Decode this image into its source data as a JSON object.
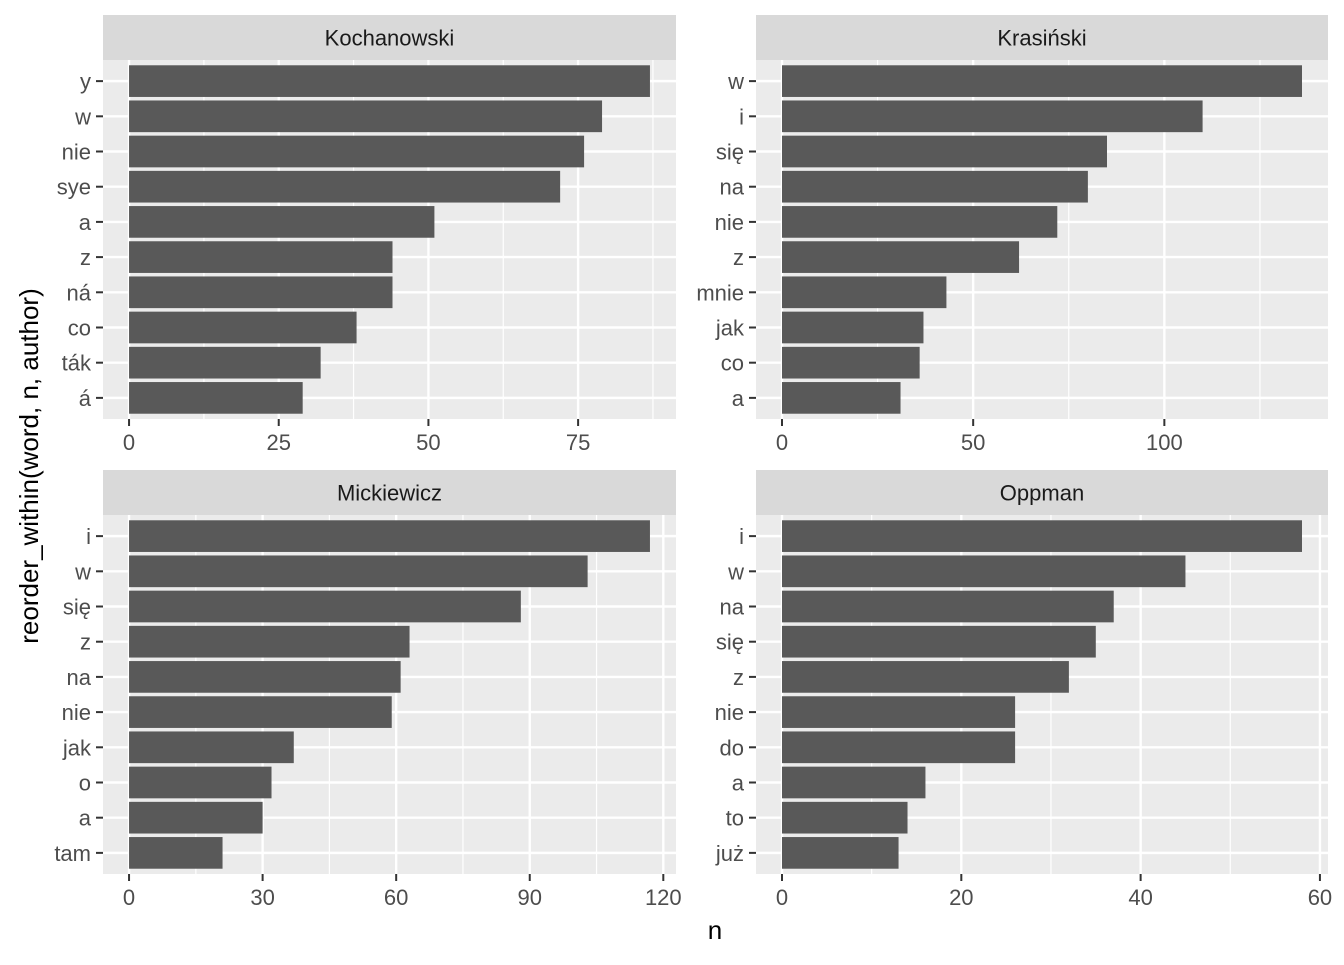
{
  "chart_data": {
    "type": "bar",
    "orientation": "horizontal",
    "xlabel": "n",
    "ylabel": "reorder_within(word, n, author)",
    "grid": true,
    "colors": {
      "bar": "#595959",
      "panel_bg": "#ebebeb",
      "strip_bg": "#d9d9d9",
      "grid": "#ffffff"
    },
    "facets": [
      {
        "title": "Kochanowski",
        "categories": [
          "y",
          "w",
          "nie",
          "sye",
          "a",
          "z",
          "ná",
          "co",
          "ták",
          "á"
        ],
        "values": [
          87,
          79,
          76,
          72,
          51,
          44,
          44,
          38,
          32,
          29
        ],
        "xlim": [
          -4.35,
          91.35
        ],
        "xticks": [
          0,
          25,
          50,
          75
        ],
        "xtick_labels": [
          "0",
          "25",
          "50",
          "75"
        ]
      },
      {
        "title": "Krasiński",
        "categories": [
          "w",
          "i",
          "się",
          "na",
          "nie",
          "z",
          "mnie",
          "jak",
          "co",
          "a"
        ],
        "values": [
          136,
          110,
          85,
          80,
          72,
          62,
          43,
          37,
          36,
          31
        ],
        "xlim": [
          -6.8,
          142.8
        ],
        "xticks": [
          0,
          50,
          100
        ],
        "xtick_labels": [
          "0",
          "50",
          "100"
        ]
      },
      {
        "title": "Mickiewicz",
        "categories": [
          "i",
          "w",
          "się",
          "z",
          "na",
          "nie",
          "jak",
          "o",
          "a",
          "tam"
        ],
        "values": [
          117,
          103,
          88,
          63,
          61,
          59,
          37,
          32,
          30,
          21
        ],
        "xlim": [
          -5.85,
          122.85
        ],
        "xticks": [
          0,
          30,
          60,
          90,
          120
        ],
        "xtick_labels": [
          "0",
          "30",
          "60",
          "90",
          "120"
        ]
      },
      {
        "title": "Oppman",
        "categories": [
          "i",
          "w",
          "na",
          "się",
          "z",
          "nie",
          "do",
          "a",
          "to",
          "już"
        ],
        "values": [
          58,
          45,
          37,
          35,
          32,
          26,
          26,
          16,
          14,
          13
        ],
        "xlim": [
          -2.9,
          60.9
        ],
        "xticks": [
          0,
          20,
          40,
          60
        ],
        "xtick_labels": [
          "0",
          "20",
          "40",
          "60"
        ]
      }
    ]
  }
}
